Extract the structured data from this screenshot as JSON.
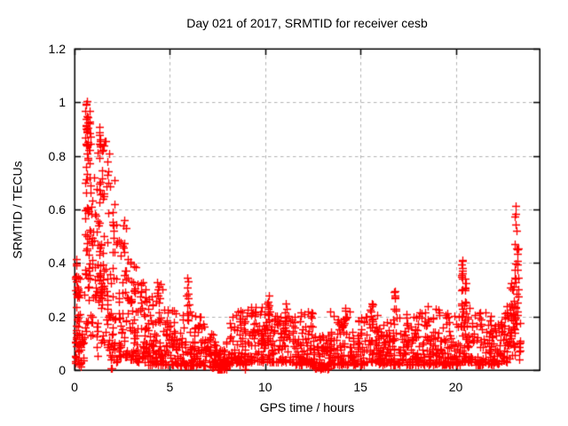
{
  "chart_data": {
    "type": "scatter",
    "title": "Day 021 of 2017, SRMTID for receiver cesb",
    "xlabel": "GPS time / hours",
    "ylabel": "SRMTID / TECUs",
    "xlim": [
      0,
      24.4
    ],
    "ylim": [
      0,
      1.2
    ],
    "xticks": [
      0,
      5,
      10,
      15,
      20
    ],
    "xtick_labels": [
      "0",
      "5",
      "10",
      "15",
      "20"
    ],
    "yticks": [
      0,
      0.2,
      0.4,
      0.6,
      0.8,
      1,
      1.2
    ],
    "ytick_labels": [
      "0",
      "0.2",
      "0.4",
      "0.6",
      "0.8",
      "1",
      "1.2"
    ],
    "grid": {
      "visible": true,
      "style": "dashed",
      "color": "#b4b4b4"
    },
    "marker": {
      "shape": "plus",
      "color": "#ff0000",
      "size": 9
    },
    "axis_color": "#000000",
    "background": "#ffffff",
    "seed": 20170121,
    "bands_format": "[x_start_hour, x_end_hour, n_points, y_min, y_max, low_bias_exponent]",
    "bands": [
      [
        0.03,
        0.28,
        48,
        0.02,
        0.42,
        1.3
      ],
      [
        0.28,
        0.52,
        18,
        0.01,
        0.14,
        1.6
      ],
      [
        0.52,
        0.88,
        60,
        0.12,
        1.0,
        1.15
      ],
      [
        0.88,
        1.2,
        30,
        0.05,
        0.74,
        1.4
      ],
      [
        1.2,
        1.6,
        48,
        0.1,
        0.9,
        1.25
      ],
      [
        1.6,
        1.85,
        25,
        0.07,
        0.85,
        1.5
      ],
      [
        1.85,
        2.25,
        40,
        0.02,
        0.72,
        1.7
      ],
      [
        2.25,
        2.85,
        55,
        0.05,
        0.55,
        1.7
      ],
      [
        2.85,
        3.25,
        40,
        0.04,
        0.42,
        1.8
      ],
      [
        3.25,
        3.75,
        45,
        0.03,
        0.35,
        1.9
      ],
      [
        3.75,
        4.25,
        40,
        0.02,
        0.28,
        2.0
      ],
      [
        4.25,
        4.65,
        32,
        0.02,
        0.22,
        2.0
      ],
      [
        4.65,
        5.55,
        65,
        0.02,
        0.24,
        2.1
      ],
      [
        5.55,
        7.05,
        105,
        0.015,
        0.22,
        2.2
      ],
      [
        7.05,
        7.45,
        40,
        0.01,
        0.14,
        1.9
      ],
      [
        7.45,
        7.95,
        55,
        0.004,
        0.08,
        1.5
      ],
      [
        7.95,
        9.0,
        80,
        0.02,
        0.22,
        2.0
      ],
      [
        9.0,
        10.0,
        80,
        0.03,
        0.24,
        2.1
      ],
      [
        10.0,
        11.5,
        110,
        0.03,
        0.25,
        2.1
      ],
      [
        11.5,
        12.5,
        80,
        0.02,
        0.22,
        2.2
      ],
      [
        12.5,
        13.4,
        70,
        0.005,
        0.13,
        1.7
      ],
      [
        13.4,
        14.5,
        75,
        0.02,
        0.22,
        2.0
      ],
      [
        14.5,
        15.25,
        55,
        0.02,
        0.2,
        2.2
      ],
      [
        15.25,
        15.95,
        55,
        0.03,
        0.25,
        2.0
      ],
      [
        15.95,
        16.65,
        55,
        0.02,
        0.22,
        2.2
      ],
      [
        16.65,
        18.0,
        100,
        0.02,
        0.22,
        2.2
      ],
      [
        18.0,
        19.5,
        110,
        0.02,
        0.23,
        2.2
      ],
      [
        19.5,
        20.25,
        55,
        0.02,
        0.22,
        2.2
      ],
      [
        20.3,
        21.0,
        50,
        0.03,
        0.25,
        2.0
      ],
      [
        21.0,
        22.3,
        95,
        0.02,
        0.22,
        2.2
      ],
      [
        22.3,
        22.85,
        45,
        0.03,
        0.28,
        1.8
      ],
      [
        22.85,
        23.15,
        35,
        0.05,
        0.35,
        1.4
      ],
      [
        23.3,
        23.42,
        8,
        0.04,
        0.18,
        1.5
      ]
    ],
    "spikes_format": "[x_center_hour, x_spread, n_points, y_min, y_max]",
    "spikes": [
      [
        0.7,
        0.1,
        18,
        0.3,
        0.95
      ],
      [
        1.35,
        0.12,
        14,
        0.25,
        0.88
      ],
      [
        4.45,
        0.2,
        10,
        0.24,
        0.33
      ],
      [
        5.95,
        0.08,
        9,
        0.19,
        0.34
      ],
      [
        8.7,
        0.1,
        7,
        0.17,
        0.255
      ],
      [
        10.2,
        0.06,
        7,
        0.18,
        0.275
      ],
      [
        11.05,
        0.07,
        6,
        0.17,
        0.26
      ],
      [
        14.2,
        0.07,
        7,
        0.16,
        0.235
      ],
      [
        15.55,
        0.15,
        8,
        0.18,
        0.25
      ],
      [
        16.8,
        0.06,
        9,
        0.17,
        0.295
      ],
      [
        18.45,
        0.08,
        5,
        0.16,
        0.24
      ],
      [
        20.32,
        0.04,
        13,
        0.2,
        0.41
      ],
      [
        20.52,
        0.05,
        8,
        0.17,
        0.35
      ],
      [
        23.18,
        0.1,
        22,
        0.15,
        0.47
      ]
    ],
    "points_format": "[x_hour, y_TECUs] notable extremes read from plot",
    "points": [
      [
        0.63,
        1.005
      ],
      [
        0.63,
        0.948
      ],
      [
        0.64,
        0.898
      ],
      [
        0.62,
        0.845
      ],
      [
        0.66,
        0.81
      ],
      [
        1.32,
        0.908
      ],
      [
        1.3,
        0.888
      ],
      [
        1.37,
        0.862
      ],
      [
        1.62,
        0.855
      ],
      [
        1.45,
        0.82
      ],
      [
        2.62,
        0.56
      ],
      [
        2.68,
        0.53
      ],
      [
        2.1,
        0.62
      ],
      [
        1.9,
        0.005
      ],
      [
        1.97,
        0.005
      ],
      [
        7.55,
        0.003
      ],
      [
        7.62,
        0.002
      ],
      [
        7.72,
        0.004
      ],
      [
        8.93,
        0.004
      ],
      [
        12.92,
        0.003
      ],
      [
        13.28,
        0.004
      ],
      [
        0.08,
        0.39
      ],
      [
        0.1,
        0.35
      ],
      [
        0.12,
        0.31
      ],
      [
        5.93,
        0.345
      ],
      [
        5.97,
        0.33
      ],
      [
        10.18,
        0.28
      ],
      [
        16.8,
        0.295
      ],
      [
        16.83,
        0.28
      ],
      [
        20.33,
        0.41
      ],
      [
        20.3,
        0.395
      ],
      [
        23.12,
        0.612
      ],
      [
        23.16,
        0.585
      ],
      [
        23.1,
        0.572
      ],
      [
        23.14,
        0.545
      ],
      [
        23.18,
        0.522
      ],
      [
        23.08,
        0.47
      ],
      [
        23.21,
        0.455
      ]
    ]
  }
}
